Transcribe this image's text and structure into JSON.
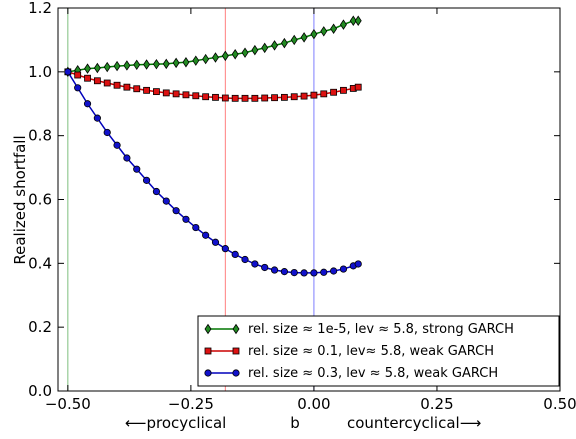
{
  "chart_data": {
    "type": "line",
    "title": "",
    "ylabel": "Realized shortfall",
    "xlabel": {
      "left": "⟵procyclical",
      "center": "b",
      "right": "countercyclical⟶"
    },
    "xlim": [
      -0.52,
      0.5
    ],
    "ylim": [
      0.0,
      1.2
    ],
    "x_ticks": [
      -0.5,
      -0.25,
      0.0,
      0.25,
      0.5
    ],
    "x_tick_labels": [
      "−0.50",
      "−0.25",
      "0.00",
      "0.25",
      "0.50"
    ],
    "y_ticks": [
      0.0,
      0.2,
      0.4,
      0.6,
      0.8,
      1.0,
      1.2
    ],
    "y_tick_labels": [
      "0.0",
      "0.2",
      "0.4",
      "0.6",
      "0.8",
      "1.0",
      "1.2"
    ],
    "grid": false,
    "legend_position": "bottom-right",
    "vertical_lines": [
      {
        "x": -0.5,
        "color": "#7fbf7f"
      },
      {
        "x": -0.18,
        "color": "#ff7f7f"
      },
      {
        "x": 0.0,
        "color": "#7f7fff"
      }
    ],
    "series": [
      {
        "name": "rel. size ≈ 1e-5, lev ≈ 5.8, strong GARCH",
        "color": "#007700",
        "fill": "#228b22",
        "marker": "diamond",
        "x": [
          -0.5,
          -0.48,
          -0.46,
          -0.44,
          -0.42,
          -0.4,
          -0.38,
          -0.36,
          -0.34,
          -0.32,
          -0.3,
          -0.28,
          -0.26,
          -0.24,
          -0.22,
          -0.2,
          -0.18,
          -0.16,
          -0.14,
          -0.12,
          -0.1,
          -0.08,
          -0.06,
          -0.04,
          -0.02,
          0.0,
          0.02,
          0.04,
          0.06,
          0.08,
          0.09
        ],
        "y": [
          1.0,
          1.005,
          1.01,
          1.012,
          1.015,
          1.018,
          1.02,
          1.022,
          1.023,
          1.024,
          1.025,
          1.028,
          1.03,
          1.035,
          1.04,
          1.045,
          1.05,
          1.055,
          1.06,
          1.068,
          1.075,
          1.083,
          1.09,
          1.1,
          1.108,
          1.118,
          1.127,
          1.135,
          1.148,
          1.16,
          1.16
        ]
      },
      {
        "name": "rel. size ≈ 0.1, lev≈ 5.8, weak GARCH",
        "color": "#cc0000",
        "fill": "#dd1111",
        "marker": "square",
        "x": [
          -0.5,
          -0.48,
          -0.46,
          -0.44,
          -0.42,
          -0.4,
          -0.38,
          -0.36,
          -0.34,
          -0.32,
          -0.3,
          -0.28,
          -0.26,
          -0.24,
          -0.22,
          -0.2,
          -0.18,
          -0.16,
          -0.14,
          -0.12,
          -0.1,
          -0.08,
          -0.06,
          -0.04,
          -0.02,
          0.0,
          0.02,
          0.04,
          0.06,
          0.08,
          0.09
        ],
        "y": [
          1.0,
          0.99,
          0.98,
          0.972,
          0.965,
          0.958,
          0.952,
          0.947,
          0.942,
          0.938,
          0.934,
          0.931,
          0.928,
          0.925,
          0.922,
          0.92,
          0.918,
          0.917,
          0.917,
          0.917,
          0.918,
          0.919,
          0.92,
          0.922,
          0.924,
          0.927,
          0.931,
          0.936,
          0.942,
          0.948,
          0.952
        ]
      },
      {
        "name": "rel. size ≈ 0.3, lev ≈ 5.8, weak GARCH",
        "color": "#0000bb",
        "fill": "#1111cc",
        "marker": "circle",
        "x": [
          -0.5,
          -0.48,
          -0.46,
          -0.44,
          -0.42,
          -0.4,
          -0.38,
          -0.36,
          -0.34,
          -0.32,
          -0.3,
          -0.28,
          -0.26,
          -0.24,
          -0.22,
          -0.2,
          -0.18,
          -0.16,
          -0.14,
          -0.12,
          -0.1,
          -0.08,
          -0.06,
          -0.04,
          -0.02,
          0.0,
          0.02,
          0.04,
          0.06,
          0.08,
          0.09
        ],
        "y": [
          1.0,
          0.95,
          0.9,
          0.855,
          0.81,
          0.77,
          0.73,
          0.695,
          0.66,
          0.625,
          0.595,
          0.565,
          0.538,
          0.512,
          0.488,
          0.466,
          0.446,
          0.428,
          0.412,
          0.398,
          0.387,
          0.379,
          0.374,
          0.371,
          0.37,
          0.37,
          0.372,
          0.376,
          0.382,
          0.392,
          0.398
        ]
      }
    ]
  }
}
